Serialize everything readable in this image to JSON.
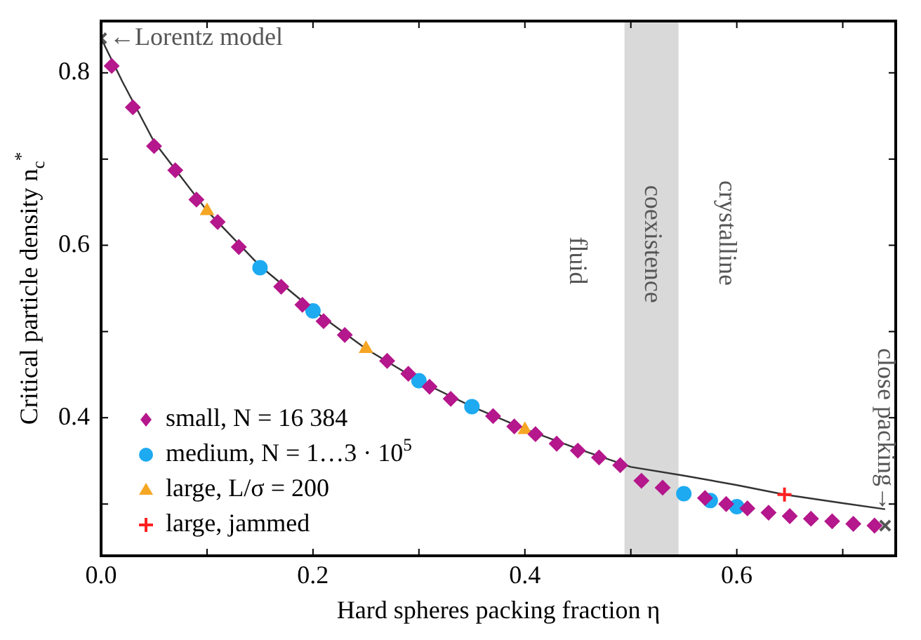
{
  "chart_data": {
    "type": "scatter",
    "xlabel": "Hard spheres packing fraction η",
    "ylabel": "Critical particle density n$_{c}$$^{*}$",
    "xlim": [
      0,
      0.75
    ],
    "ylim": [
      0.24,
      0.86
    ],
    "xticks": [
      {
        "value": 0,
        "label": "0.0"
      },
      {
        "value": 0.1,
        "label": null
      },
      {
        "value": 0.2,
        "label": "0.2"
      },
      {
        "value": 0.3,
        "label": null
      },
      {
        "value": 0.4,
        "label": "0.4"
      },
      {
        "value": 0.5,
        "label": null
      },
      {
        "value": 0.6,
        "label": "0.6"
      },
      {
        "value": 0.7,
        "label": null
      }
    ],
    "yticks": [
      {
        "value": 0.3,
        "label": null
      },
      {
        "value": 0.4,
        "label": "0.4"
      },
      {
        "value": 0.5,
        "label": null
      },
      {
        "value": 0.6,
        "label": "0.6"
      },
      {
        "value": 0.7,
        "label": null
      },
      {
        "value": 0.8,
        "label": "0.8"
      }
    ],
    "grid": false,
    "legend": "bottom left",
    "bands": [
      {
        "axis": "x",
        "from": 0.494,
        "to": 0.545,
        "label": "coexistence",
        "color": "#d9d9d9"
      }
    ],
    "annotations": [
      {
        "text": "←Lorentz model",
        "x": 0,
        "y": 0.84
      },
      {
        "text": "close packing→",
        "x": 0.74,
        "y": 0.275
      },
      "fluid",
      "crystalline"
    ],
    "series": [
      {
        "type": "line",
        "color": "#333333",
        "marker": "none",
        "x": [
          0,
          0.02,
          0.05,
          0.1,
          0.15,
          0.2,
          0.25,
          0.3,
          0.35,
          0.4,
          0.45,
          0.5,
          0.55,
          0.6,
          0.645,
          0.7,
          0.74
        ],
        "values": [
          0.84,
          0.79,
          0.72,
          0.64,
          0.576,
          0.525,
          0.48,
          0.443,
          0.413,
          0.387,
          0.364,
          0.343,
          0.333,
          0.322,
          0.311,
          0.301,
          0.294
        ]
      },
      {
        "name": "small, N = 16 384",
        "color": "#b5178c",
        "marker": "diamond",
        "x": [
          0.01,
          0.03,
          0.05,
          0.07,
          0.09,
          0.11,
          0.13,
          0.17,
          0.19,
          0.21,
          0.23,
          0.27,
          0.29,
          0.31,
          0.33,
          0.37,
          0.39,
          0.41,
          0.43,
          0.45,
          0.47,
          0.49,
          0.51,
          0.53,
          0.57,
          0.59,
          0.61,
          0.63,
          0.65,
          0.67,
          0.69,
          0.71,
          0.73
        ],
        "values": [
          0.808,
          0.76,
          0.715,
          0.687,
          0.653,
          0.627,
          0.598,
          0.552,
          0.531,
          0.512,
          0.496,
          0.466,
          0.451,
          0.436,
          0.422,
          0.402,
          0.39,
          0.381,
          0.37,
          0.362,
          0.354,
          0.345,
          0.327,
          0.319,
          0.307,
          0.3,
          0.295,
          0.29,
          0.286,
          0.283,
          0.28,
          0.277,
          0.275
        ]
      },
      {
        "name": "medium, N = 1…3 · 10$^{5}$",
        "color": "#1eaaf1",
        "marker": "circle",
        "x": [
          0.15,
          0.2,
          0.3,
          0.35,
          0.55,
          0.575,
          0.6
        ],
        "values": [
          0.574,
          0.524,
          0.443,
          0.413,
          0.312,
          0.304,
          0.297
        ]
      },
      {
        "name": "large, L/σ = 200",
        "color": "#f5a623",
        "marker": "triangle",
        "x": [
          0.1,
          0.25,
          0.4
        ],
        "values": [
          0.64,
          0.48,
          0.386
        ]
      },
      {
        "name": "large, jammed",
        "color": "#ff2020",
        "marker": "cross",
        "x": [
          0.645
        ],
        "values": [
          0.311
        ]
      },
      {
        "color": "#555555",
        "marker": "x",
        "x": [
          0,
          0.74
        ],
        "values": [
          0.84,
          0.275
        ]
      }
    ]
  }
}
